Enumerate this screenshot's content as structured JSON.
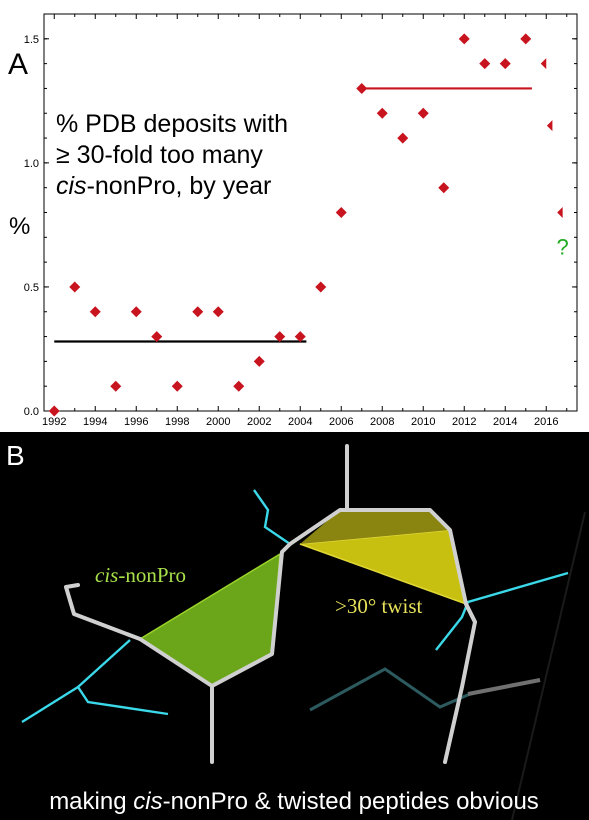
{
  "chart_data": {
    "type": "scatter",
    "panel_label": "A",
    "title_lines": [
      "% PDB deposits with",
      "≥ 30-fold too many"
    ],
    "title_line3_italic": "cis",
    "title_line3_rest": "-nonPro, by year",
    "ylabel": "%",
    "xlim": [
      1991.5,
      2017.5
    ],
    "ylim": [
      0,
      1.6
    ],
    "x_ticks": [
      1992,
      1994,
      1996,
      1998,
      2000,
      2002,
      2004,
      2006,
      2008,
      2010,
      2012,
      2014,
      2016
    ],
    "y_ticks": [
      {
        "value": 0,
        "label": "0.0"
      },
      {
        "value": 0.5,
        "label": "0.5"
      },
      {
        "value": 1.0,
        "label": "1.0"
      },
      {
        "value": 1.5,
        "label": "1.5"
      }
    ],
    "marker_color": "#c8141e",
    "points": [
      {
        "x": 1992,
        "y": 0.0
      },
      {
        "x": 1993,
        "y": 0.5
      },
      {
        "x": 1994,
        "y": 0.4
      },
      {
        "x": 1995,
        "y": 0.1
      },
      {
        "x": 1996,
        "y": 0.4
      },
      {
        "x": 1997,
        "y": 0.3
      },
      {
        "x": 1998,
        "y": 0.1
      },
      {
        "x": 1999,
        "y": 0.4
      },
      {
        "x": 2000,
        "y": 0.4
      },
      {
        "x": 2001,
        "y": 0.1
      },
      {
        "x": 2002,
        "y": 0.2
      },
      {
        "x": 2003,
        "y": 0.3
      },
      {
        "x": 2004,
        "y": 0.3
      },
      {
        "x": 2005,
        "y": 0.5
      },
      {
        "x": 2006,
        "y": 0.8
      },
      {
        "x": 2007,
        "y": 1.3
      },
      {
        "x": 2008,
        "y": 1.2
      },
      {
        "x": 2009,
        "y": 1.1
      },
      {
        "x": 2010,
        "y": 1.2
      },
      {
        "x": 2011,
        "y": 0.9
      },
      {
        "x": 2012,
        "y": 1.5
      },
      {
        "x": 2013,
        "y": 1.4
      },
      {
        "x": 2014,
        "y": 1.4
      },
      {
        "x": 2015,
        "y": 1.5
      }
    ],
    "partial_points": [
      {
        "x": 2016,
        "y": 1.4,
        "shape": "left-half"
      },
      {
        "x": 2016.3,
        "y": 1.15,
        "shape": "left-half"
      },
      {
        "x": 2016.8,
        "y": 0.8,
        "shape": "left-half"
      }
    ],
    "question_mark": {
      "text": "?",
      "x": 2016.8,
      "y": 0.68,
      "color": "#22aa22"
    },
    "mean_lines": [
      {
        "x_start": 1992,
        "x_end": 2004.3,
        "y": 0.28,
        "color": "#000000"
      },
      {
        "x_start": 2006.8,
        "x_end": 2015.3,
        "y": 1.3,
        "color": "#c8141e"
      }
    ]
  },
  "panel_b": {
    "label": "B",
    "cis_label_italic": "cis",
    "cis_label_rest": "-nonPro",
    "cis_label_color": "#a8e04a",
    "twist_label": ">30° twist",
    "twist_label_color": "#e6e05a",
    "caption_part1": "making ",
    "caption_italic": "cis",
    "caption_part2": "-nonPro & twisted peptides obvious",
    "cis_fill_color": "#6aa51a",
    "twist_fill_color": "#c8c010",
    "twist_dark_color": "#8a8410",
    "backbone_color": "#d0d0d0",
    "sidechain_color": "#3ad8e8"
  }
}
